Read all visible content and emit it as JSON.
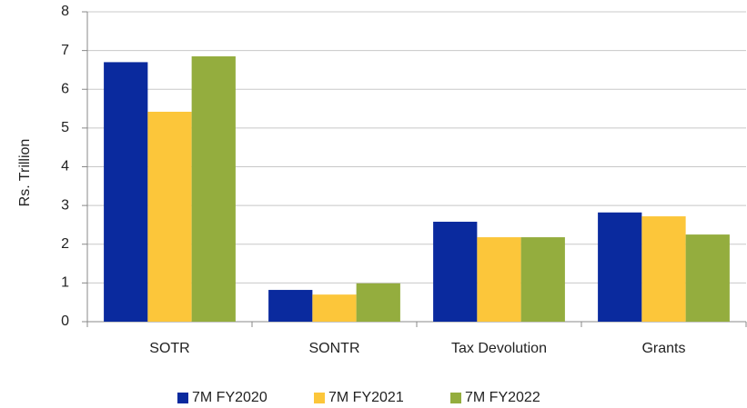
{
  "chart_data": {
    "type": "bar",
    "y_label": "Rs. Trillion",
    "categories": [
      "SOTR",
      "SONTR",
      "Tax Devolution",
      "Grants"
    ],
    "series": [
      {
        "name": "7M FY2020",
        "color": "#0a2a9e",
        "values": [
          6.7,
          0.82,
          2.58,
          2.82
        ]
      },
      {
        "name": "7M FY2021",
        "color": "#fcc63a",
        "values": [
          5.42,
          0.7,
          2.18,
          2.72
        ]
      },
      {
        "name": "7M FY2022",
        "color": "#94ad3e",
        "values": [
          6.85,
          0.99,
          2.18,
          2.25
        ]
      }
    ],
    "ylim": [
      0,
      8
    ],
    "yticks": [
      0,
      1,
      2,
      3,
      4,
      5,
      6,
      7,
      8
    ],
    "grid": true,
    "legend": "bottom"
  }
}
